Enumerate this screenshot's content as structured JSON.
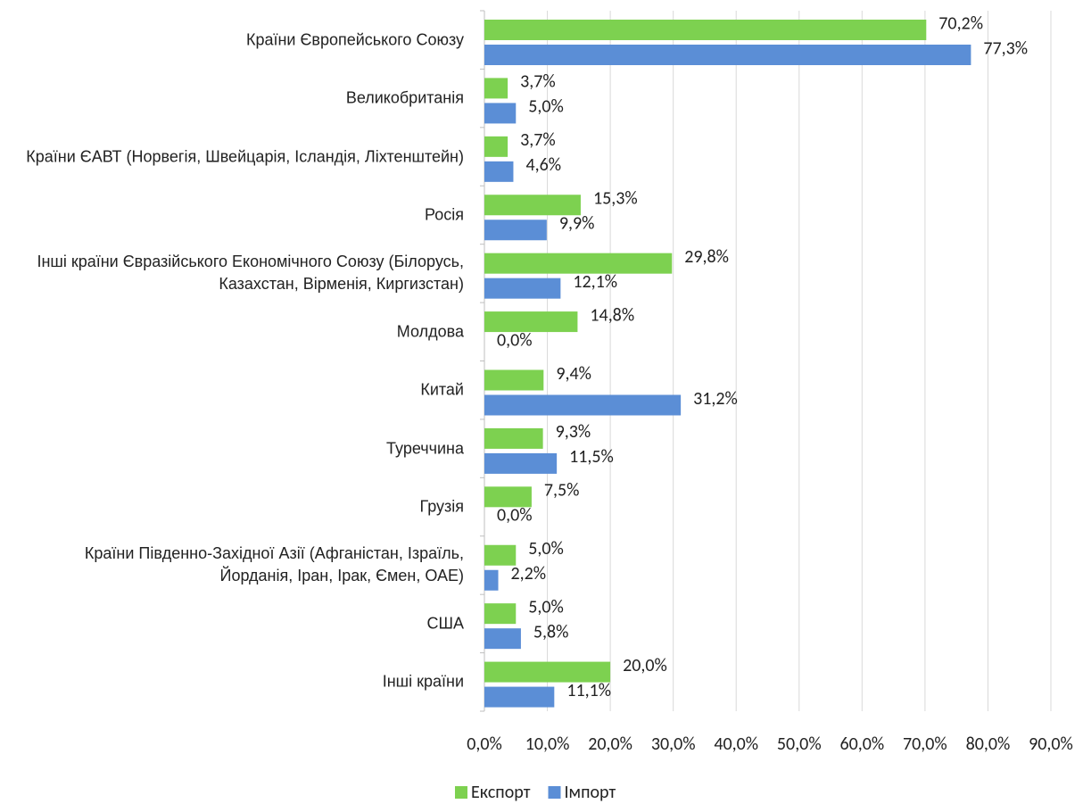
{
  "chart_data": {
    "type": "bar",
    "orientation": "horizontal",
    "categories": [
      "Країни Європейського Союзу",
      "Великобританія",
      "Країни ЄАВТ (Норвегія, Швейцарія, Ісландія, Ліхтенштейн)",
      "Росія",
      "Інші країни Євразійського Економічного Союзу (Білорусь, Казахстан, Вірменія, Киргизстан)",
      "Молдова",
      "Китай",
      "Туреччина",
      "Грузія",
      "Країни Південно-Західної Азії (Афганістан, Ізраїль, Йорданія, Іран, Ірак, Ємен, ОАЕ)",
      "США",
      "Інші країни"
    ],
    "series": [
      {
        "name": "Експорт",
        "color": "#7dd150",
        "values": [
          70.2,
          3.7,
          3.7,
          15.3,
          29.8,
          14.8,
          9.4,
          9.3,
          7.5,
          5.0,
          5.0,
          20.0
        ],
        "value_labels": [
          "70,2%",
          "3,7%",
          "3,7%",
          "15,3%",
          "29,8%",
          "14,8%",
          "9,4%",
          "9,3%",
          "7,5%",
          "5,0%",
          "5,0%",
          "20,0%"
        ]
      },
      {
        "name": "Імпорт",
        "color": "#5b8ed6",
        "values": [
          77.3,
          5.0,
          4.6,
          9.9,
          12.1,
          0.0,
          31.2,
          11.5,
          0.0,
          2.2,
          5.8,
          11.1
        ],
        "value_labels": [
          "77,3%",
          "5,0%",
          "4,6%",
          "9,9%",
          "12,1%",
          "0,0%",
          "31,2%",
          "11,5%",
          "0,0%",
          "2,2%",
          "5,8%",
          "11,1%"
        ]
      }
    ],
    "xlim": [
      0,
      90
    ],
    "xticks": [
      {
        "value": 0,
        "label": "0,0%"
      },
      {
        "value": 10,
        "label": "10,0%"
      },
      {
        "value": 20,
        "label": "20,0%"
      },
      {
        "value": 30,
        "label": "30,0%"
      },
      {
        "value": 40,
        "label": "40,0%"
      },
      {
        "value": 50,
        "label": "50,0%"
      },
      {
        "value": 60,
        "label": "60,0%"
      },
      {
        "value": 70,
        "label": "70,0%"
      },
      {
        "value": 80,
        "label": "80,0%"
      },
      {
        "value": 90,
        "label": "90,0%"
      }
    ],
    "grid": true,
    "legend": "bottom"
  }
}
